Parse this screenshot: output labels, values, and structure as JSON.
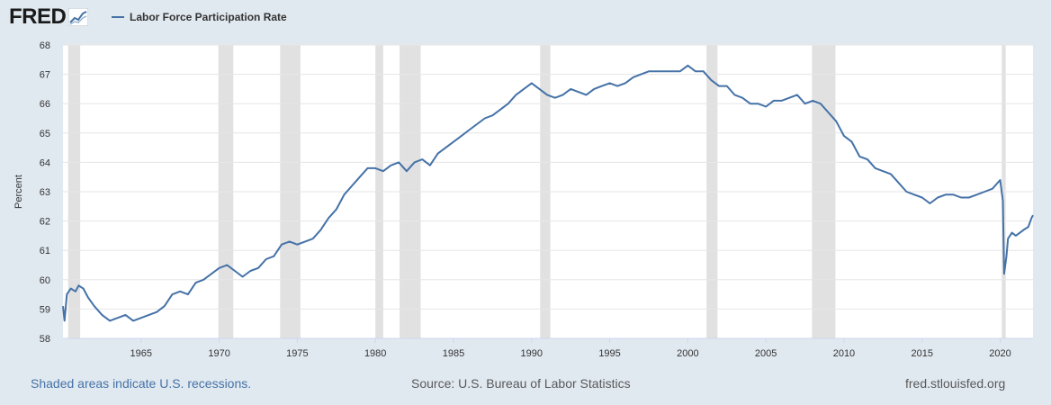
{
  "brand": {
    "logo_text": "FRED",
    "logo_icon": "fred-graph-icon"
  },
  "colors": {
    "background": "#e1e9f0",
    "plot_background": "#ffffff",
    "series_line": "#4572a7",
    "recession_shading": "#e1e1e1",
    "gridline": "#e6e6e6",
    "footer_link": "#4572a7"
  },
  "footer": {
    "recession_note": "Shaded areas indicate U.S. recessions.",
    "source": "Source: U.S. Bureau of Labor Statistics",
    "site": "fred.stlouisfed.org"
  },
  "chart_data": {
    "type": "line",
    "title": "",
    "xlabel": "",
    "ylabel": "Percent",
    "xlim": [
      1960.0,
      2022.1
    ],
    "ylim": [
      58,
      68
    ],
    "y_ticks": [
      58,
      59,
      60,
      61,
      62,
      63,
      64,
      65,
      66,
      67,
      68
    ],
    "x_ticks": [
      1965,
      1970,
      1975,
      1980,
      1985,
      1990,
      1995,
      2000,
      2005,
      2010,
      2015,
      2020
    ],
    "grid": true,
    "legend": "top-left",
    "recessions": [
      [
        1960.33,
        1961.1
      ],
      [
        1969.95,
        1970.9
      ],
      [
        1973.9,
        1975.2
      ],
      [
        1980.0,
        1980.5
      ],
      [
        1981.55,
        1982.9
      ],
      [
        1990.55,
        1991.2
      ],
      [
        2001.2,
        2001.9
      ],
      [
        2007.95,
        2009.45
      ],
      [
        2020.1,
        2020.35
      ]
    ],
    "series": [
      {
        "name": "Labor Force Participation Rate",
        "points": [
          [
            1960.0,
            59.1
          ],
          [
            1960.1,
            58.6
          ],
          [
            1960.25,
            59.5
          ],
          [
            1960.5,
            59.7
          ],
          [
            1960.8,
            59.6
          ],
          [
            1961.0,
            59.8
          ],
          [
            1961.3,
            59.7
          ],
          [
            1961.6,
            59.4
          ],
          [
            1962.0,
            59.1
          ],
          [
            1962.5,
            58.8
          ],
          [
            1963.0,
            58.6
          ],
          [
            1963.5,
            58.7
          ],
          [
            1964.0,
            58.8
          ],
          [
            1964.5,
            58.6
          ],
          [
            1965.0,
            58.7
          ],
          [
            1965.5,
            58.8
          ],
          [
            1966.0,
            58.9
          ],
          [
            1966.5,
            59.1
          ],
          [
            1967.0,
            59.5
          ],
          [
            1967.5,
            59.6
          ],
          [
            1968.0,
            59.5
          ],
          [
            1968.5,
            59.9
          ],
          [
            1969.0,
            60.0
          ],
          [
            1969.5,
            60.2
          ],
          [
            1970.0,
            60.4
          ],
          [
            1970.5,
            60.5
          ],
          [
            1971.0,
            60.3
          ],
          [
            1971.5,
            60.1
          ],
          [
            1972.0,
            60.3
          ],
          [
            1972.5,
            60.4
          ],
          [
            1973.0,
            60.7
          ],
          [
            1973.5,
            60.8
          ],
          [
            1974.0,
            61.2
          ],
          [
            1974.5,
            61.3
          ],
          [
            1975.0,
            61.2
          ],
          [
            1975.5,
            61.3
          ],
          [
            1976.0,
            61.4
          ],
          [
            1976.5,
            61.7
          ],
          [
            1977.0,
            62.1
          ],
          [
            1977.5,
            62.4
          ],
          [
            1978.0,
            62.9
          ],
          [
            1978.5,
            63.2
          ],
          [
            1979.0,
            63.5
          ],
          [
            1979.5,
            63.8
          ],
          [
            1980.0,
            63.8
          ],
          [
            1980.5,
            63.7
          ],
          [
            1981.0,
            63.9
          ],
          [
            1981.5,
            64.0
          ],
          [
            1982.0,
            63.7
          ],
          [
            1982.5,
            64.0
          ],
          [
            1983.0,
            64.1
          ],
          [
            1983.5,
            63.9
          ],
          [
            1984.0,
            64.3
          ],
          [
            1984.5,
            64.5
          ],
          [
            1985.0,
            64.7
          ],
          [
            1985.5,
            64.9
          ],
          [
            1986.0,
            65.1
          ],
          [
            1986.5,
            65.3
          ],
          [
            1987.0,
            65.5
          ],
          [
            1987.5,
            65.6
          ],
          [
            1988.0,
            65.8
          ],
          [
            1988.5,
            66.0
          ],
          [
            1989.0,
            66.3
          ],
          [
            1989.5,
            66.5
          ],
          [
            1990.0,
            66.7
          ],
          [
            1990.5,
            66.5
          ],
          [
            1991.0,
            66.3
          ],
          [
            1991.5,
            66.2
          ],
          [
            1992.0,
            66.3
          ],
          [
            1992.5,
            66.5
          ],
          [
            1993.0,
            66.4
          ],
          [
            1993.5,
            66.3
          ],
          [
            1994.0,
            66.5
          ],
          [
            1994.5,
            66.6
          ],
          [
            1995.0,
            66.7
          ],
          [
            1995.5,
            66.6
          ],
          [
            1996.0,
            66.7
          ],
          [
            1996.5,
            66.9
          ],
          [
            1997.0,
            67.0
          ],
          [
            1997.5,
            67.1
          ],
          [
            1998.0,
            67.1
          ],
          [
            1998.5,
            67.1
          ],
          [
            1999.0,
            67.1
          ],
          [
            1999.5,
            67.1
          ],
          [
            2000.0,
            67.3
          ],
          [
            2000.5,
            67.1
          ],
          [
            2001.0,
            67.1
          ],
          [
            2001.5,
            66.8
          ],
          [
            2002.0,
            66.6
          ],
          [
            2002.5,
            66.6
          ],
          [
            2003.0,
            66.3
          ],
          [
            2003.5,
            66.2
          ],
          [
            2004.0,
            66.0
          ],
          [
            2004.5,
            66.0
          ],
          [
            2005.0,
            65.9
          ],
          [
            2005.5,
            66.1
          ],
          [
            2006.0,
            66.1
          ],
          [
            2006.5,
            66.2
          ],
          [
            2007.0,
            66.3
          ],
          [
            2007.5,
            66.0
          ],
          [
            2008.0,
            66.1
          ],
          [
            2008.5,
            66.0
          ],
          [
            2009.0,
            65.7
          ],
          [
            2009.5,
            65.4
          ],
          [
            2010.0,
            64.9
          ],
          [
            2010.5,
            64.7
          ],
          [
            2011.0,
            64.2
          ],
          [
            2011.5,
            64.1
          ],
          [
            2012.0,
            63.8
          ],
          [
            2012.5,
            63.7
          ],
          [
            2013.0,
            63.6
          ],
          [
            2013.5,
            63.3
          ],
          [
            2014.0,
            63.0
          ],
          [
            2014.5,
            62.9
          ],
          [
            2015.0,
            62.8
          ],
          [
            2015.5,
            62.6
          ],
          [
            2016.0,
            62.8
          ],
          [
            2016.5,
            62.9
          ],
          [
            2017.0,
            62.9
          ],
          [
            2017.5,
            62.8
          ],
          [
            2018.0,
            62.8
          ],
          [
            2018.5,
            62.9
          ],
          [
            2019.0,
            63.0
          ],
          [
            2019.5,
            63.1
          ],
          [
            2020.0,
            63.4
          ],
          [
            2020.17,
            62.7
          ],
          [
            2020.25,
            60.2
          ],
          [
            2020.4,
            60.8
          ],
          [
            2020.5,
            61.4
          ],
          [
            2020.75,
            61.6
          ],
          [
            2021.0,
            61.5
          ],
          [
            2021.5,
            61.7
          ],
          [
            2021.8,
            61.8
          ],
          [
            2022.0,
            62.1
          ],
          [
            2022.1,
            62.2
          ]
        ]
      }
    ]
  }
}
